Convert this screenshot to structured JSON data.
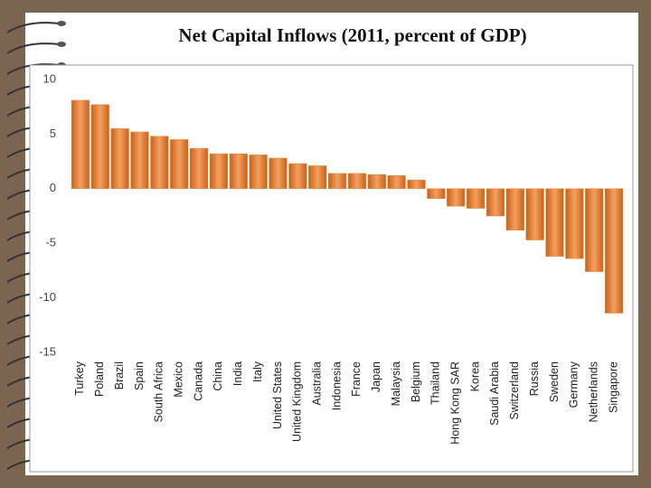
{
  "chart_data": {
    "type": "bar",
    "title": "Net Capital Inflows (2011, percent of GDP)",
    "categories": [
      "Turkey",
      "Poland",
      "Brazil",
      "Spain",
      "South Africa",
      "Mexico",
      "Canada",
      "China",
      "India",
      "Italy",
      "United States",
      "United Kingdom",
      "Australia",
      "Indonesia",
      "France",
      "Japan",
      "Malaysia",
      "Belgium",
      "Thailand",
      "Hong Kong SAR",
      "Korea",
      "Saudi Arabia",
      "Switzerland",
      "Russia",
      "Sweden",
      "Germany",
      "Netherlands",
      "Singapore"
    ],
    "values": [
      8.1,
      7.7,
      5.5,
      5.2,
      4.8,
      4.5,
      3.7,
      3.2,
      3.2,
      3.1,
      2.8,
      2.3,
      2.1,
      1.4,
      1.4,
      1.3,
      1.2,
      0.8,
      -0.9,
      -1.6,
      -1.8,
      -2.5,
      -3.8,
      -4.7,
      -6.2,
      -6.4,
      -7.6,
      -11.4
    ],
    "color": "#ee8633",
    "ylim": [
      -15,
      10
    ],
    "yticks": [
      -15,
      -10,
      -5,
      0,
      5,
      10
    ],
    "grid": false
  }
}
